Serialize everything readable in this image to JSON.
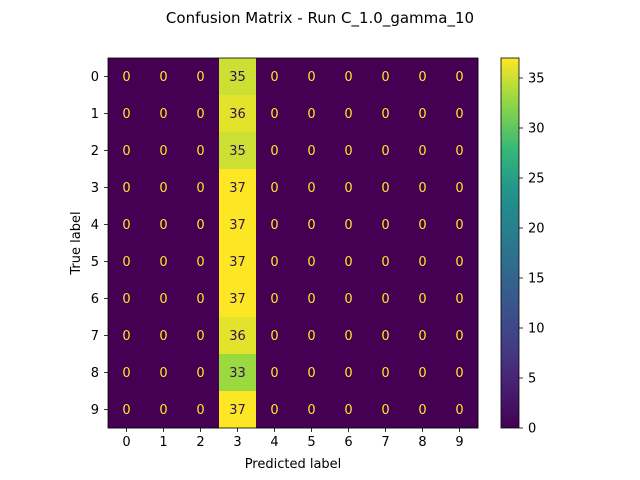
{
  "chart_data": {
    "type": "heatmap",
    "title": "Confusion Matrix - Run C_1.0_gamma_10",
    "xlabel": "Predicted label",
    "ylabel": "True label",
    "x_categories": [
      "0",
      "1",
      "2",
      "3",
      "4",
      "5",
      "6",
      "7",
      "8",
      "9"
    ],
    "y_categories": [
      "0",
      "1",
      "2",
      "3",
      "4",
      "5",
      "6",
      "7",
      "8",
      "9"
    ],
    "values": [
      [
        0,
        0,
        0,
        35,
        0,
        0,
        0,
        0,
        0,
        0
      ],
      [
        0,
        0,
        0,
        36,
        0,
        0,
        0,
        0,
        0,
        0
      ],
      [
        0,
        0,
        0,
        35,
        0,
        0,
        0,
        0,
        0,
        0
      ],
      [
        0,
        0,
        0,
        37,
        0,
        0,
        0,
        0,
        0,
        0
      ],
      [
        0,
        0,
        0,
        37,
        0,
        0,
        0,
        0,
        0,
        0
      ],
      [
        0,
        0,
        0,
        37,
        0,
        0,
        0,
        0,
        0,
        0
      ],
      [
        0,
        0,
        0,
        37,
        0,
        0,
        0,
        0,
        0,
        0
      ],
      [
        0,
        0,
        0,
        36,
        0,
        0,
        0,
        0,
        0,
        0
      ],
      [
        0,
        0,
        0,
        33,
        0,
        0,
        0,
        0,
        0,
        0
      ],
      [
        0,
        0,
        0,
        37,
        0,
        0,
        0,
        0,
        0,
        0
      ]
    ],
    "colormap": "viridis",
    "colorbar": {
      "range": [
        0,
        37
      ],
      "ticks": [
        0,
        5,
        10,
        15,
        20,
        25,
        30,
        35
      ]
    },
    "grid": false
  }
}
